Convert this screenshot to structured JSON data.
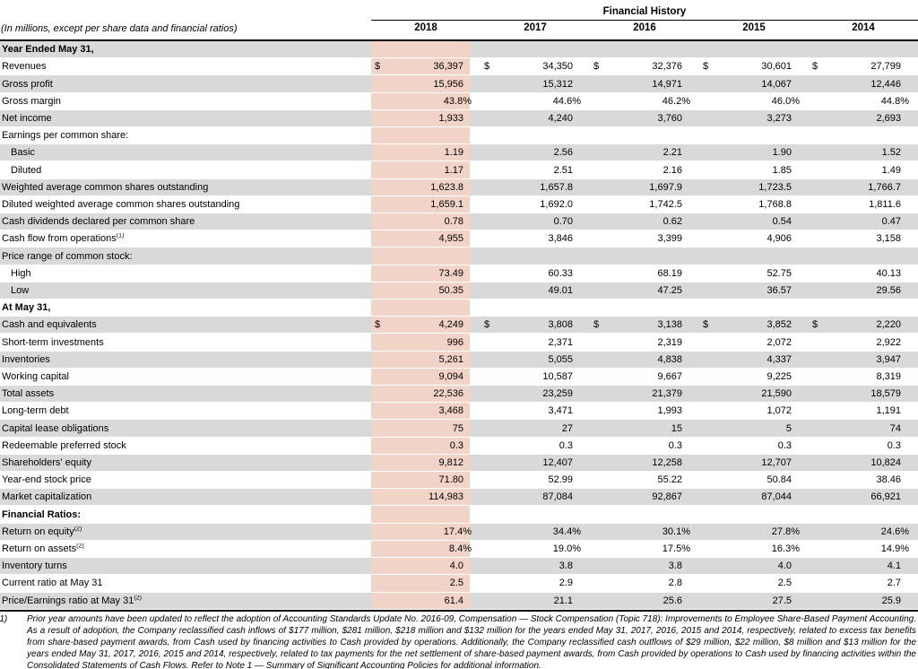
{
  "colors": {
    "highlight": "#F2D3C8",
    "stripe": "#D9D9D9"
  },
  "table": {
    "title": "Financial History",
    "unit_note": "(In millions, except per share data and financial ratios)",
    "years": [
      "2018",
      "2017",
      "2016",
      "2015",
      "2014"
    ],
    "highlight_year": "2018",
    "rows": [
      {
        "label": "Year Ended May 31,",
        "type": "section"
      },
      {
        "label": "Revenues",
        "dollar": true,
        "values": [
          "36,397",
          "34,350",
          "32,376",
          "30,601",
          "27,799"
        ]
      },
      {
        "label": "Gross profit",
        "values": [
          "15,956",
          "15,312",
          "14,971",
          "14,067",
          "12,446"
        ]
      },
      {
        "label": "Gross margin",
        "values": [
          "43.8%",
          "44.6%",
          "46.2%",
          "46.0%",
          "44.8%"
        ]
      },
      {
        "label": "Net income",
        "values": [
          "1,933",
          "4,240",
          "3,760",
          "3,273",
          "2,693"
        ]
      },
      {
        "label": "Earnings per common share:",
        "type": "subheader"
      },
      {
        "label": "Basic",
        "indent": true,
        "values": [
          "1.19",
          "2.56",
          "2.21",
          "1.90",
          "1.52"
        ]
      },
      {
        "label": "Diluted",
        "indent": true,
        "values": [
          "1.17",
          "2.51",
          "2.16",
          "1.85",
          "1.49"
        ]
      },
      {
        "label": "Weighted average common shares outstanding",
        "values": [
          "1,623.8",
          "1,657.8",
          "1,697.9",
          "1,723.5",
          "1,766.7"
        ]
      },
      {
        "label": "Diluted weighted average common shares outstanding",
        "values": [
          "1,659.1",
          "1,692.0",
          "1,742.5",
          "1,768.8",
          "1,811.6"
        ]
      },
      {
        "label": "Cash dividends declared per common share",
        "values": [
          "0.78",
          "0.70",
          "0.62",
          "0.54",
          "0.47"
        ]
      },
      {
        "label": "Cash flow from operations",
        "sup": "(1)",
        "values": [
          "4,955",
          "3,846",
          "3,399",
          "4,906",
          "3,158"
        ]
      },
      {
        "label": "Price range of common stock:",
        "type": "subheader"
      },
      {
        "label": "High",
        "indent": true,
        "values": [
          "73.49",
          "60.33",
          "68.19",
          "52.75",
          "40.13"
        ]
      },
      {
        "label": "Low",
        "indent": true,
        "values": [
          "50.35",
          "49.01",
          "47.25",
          "36.57",
          "29.56"
        ]
      },
      {
        "label": "At May 31,",
        "type": "section"
      },
      {
        "label": "Cash and equivalents",
        "dollar": true,
        "values": [
          "4,249",
          "3,808",
          "3,138",
          "3,852",
          "2,220"
        ]
      },
      {
        "label": "Short-term investments",
        "values": [
          "996",
          "2,371",
          "2,319",
          "2,072",
          "2,922"
        ]
      },
      {
        "label": "Inventories",
        "values": [
          "5,261",
          "5,055",
          "4,838",
          "4,337",
          "3,947"
        ]
      },
      {
        "label": "Working capital",
        "values": [
          "9,094",
          "10,587",
          "9,667",
          "9,225",
          "8,319"
        ]
      },
      {
        "label": "Total assets",
        "values": [
          "22,536",
          "23,259",
          "21,379",
          "21,590",
          "18,579"
        ]
      },
      {
        "label": "Long-term debt",
        "values": [
          "3,468",
          "3,471",
          "1,993",
          "1,072",
          "1,191"
        ]
      },
      {
        "label": "Capital lease obligations",
        "values": [
          "75",
          "27",
          "15",
          "5",
          "74"
        ]
      },
      {
        "label": "Redeemable preferred stock",
        "values": [
          "0.3",
          "0.3",
          "0.3",
          "0.3",
          "0.3"
        ]
      },
      {
        "label": "Shareholders' equity",
        "values": [
          "9,812",
          "12,407",
          "12,258",
          "12,707",
          "10,824"
        ]
      },
      {
        "label": "Year-end stock price",
        "values": [
          "71.80",
          "52.99",
          "55.22",
          "50.84",
          "38.46"
        ]
      },
      {
        "label": "Market capitalization",
        "values": [
          "114,983",
          "87,084",
          "92,867",
          "87,044",
          "66,921"
        ]
      },
      {
        "label": "Financial Ratios:",
        "type": "section"
      },
      {
        "label": "Return on equity",
        "sup": "(2)",
        "values": [
          "17.4%",
          "34.4%",
          "30.1%",
          "27.8%",
          "24.6%"
        ]
      },
      {
        "label": "Return on assets",
        "sup": "(2)",
        "values": [
          "8.4%",
          "19.0%",
          "17.5%",
          "16.3%",
          "14.9%"
        ]
      },
      {
        "label": "Inventory turns",
        "values": [
          "4.0",
          "3.8",
          "3.8",
          "4.0",
          "4.1"
        ]
      },
      {
        "label": "Current ratio at May 31",
        "values": [
          "2.5",
          "2.9",
          "2.8",
          "2.5",
          "2.7"
        ]
      },
      {
        "label": "Price/Earnings ratio at May 31",
        "sup": "(2)",
        "values": [
          "61.4",
          "21.1",
          "25.6",
          "27.5",
          "25.9"
        ]
      }
    ]
  },
  "footnote": {
    "marker": "(1)",
    "text": "Prior year amounts have been updated to reflect the adoption of Accounting Standards Update No. 2016-09, Compensation — Stock Compensation (Topic 718): Improvements to Employee Share-Based Payment Accounting. As a result of adoption, the Company reclassified cash inflows of $177 million, $281 million, $218 million and $132 million for the years ended May 31, 2017, 2016, 2015 and 2014, respectively, related to excess tax benefits from share-based payment awards, from Cash used by financing activities to Cash provided by operations. Additionally, the Company reclassified cash outflows of $29 million, $22 million, $8 million and $13 million for the years ended May 31, 2017, 2016, 2015 and 2014, respectively, related to tax payments for the net settlement of share-based payment awards, from Cash provided by operations to Cash used by financing activities within the Consolidated Statements of Cash Flows. Refer to Note 1 — Summary of Significant Accounting Policies for additional information."
  }
}
